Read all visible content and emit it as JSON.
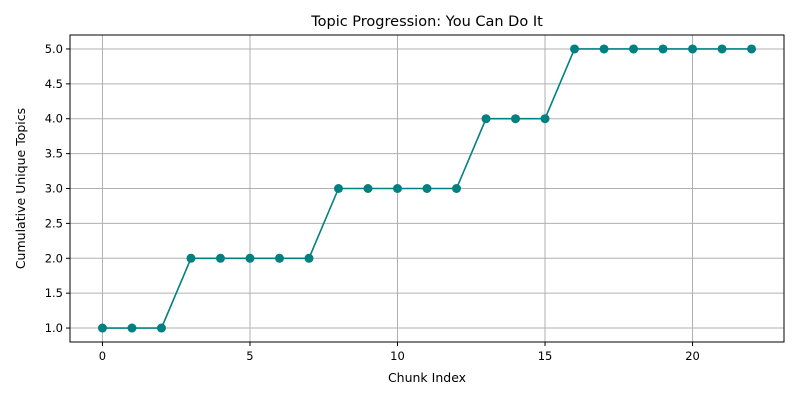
{
  "chart_data": {
    "type": "line",
    "title": "Topic Progression: You Can Do It",
    "xlabel": "Chunk Index",
    "ylabel": "Cumulative Unique Topics",
    "x": [
      0,
      1,
      2,
      3,
      4,
      5,
      6,
      7,
      8,
      9,
      10,
      11,
      12,
      13,
      14,
      15,
      16,
      17,
      18,
      19,
      20,
      21,
      22
    ],
    "series": [
      {
        "values": [
          1,
          1,
          1,
          2,
          2,
          2,
          2,
          2,
          3,
          3,
          3,
          3,
          3,
          4,
          4,
          4,
          5,
          5,
          5,
          5,
          5,
          5,
          5
        ],
        "color": "#008080",
        "marker": "circle"
      }
    ],
    "xlim": [
      -1.1,
      23.1
    ],
    "ylim": [
      0.8,
      5.2
    ],
    "xticks": [
      0,
      5,
      10,
      15,
      20
    ],
    "xtick_labels": [
      "0",
      "5",
      "10",
      "15",
      "20"
    ],
    "yticks": [
      1.0,
      1.5,
      2.0,
      2.5,
      3.0,
      3.5,
      4.0,
      4.5,
      5.0
    ],
    "ytick_labels": [
      "1.0",
      "1.5",
      "2.0",
      "2.5",
      "3.0",
      "3.5",
      "4.0",
      "4.5",
      "5.0"
    ],
    "grid": true
  }
}
